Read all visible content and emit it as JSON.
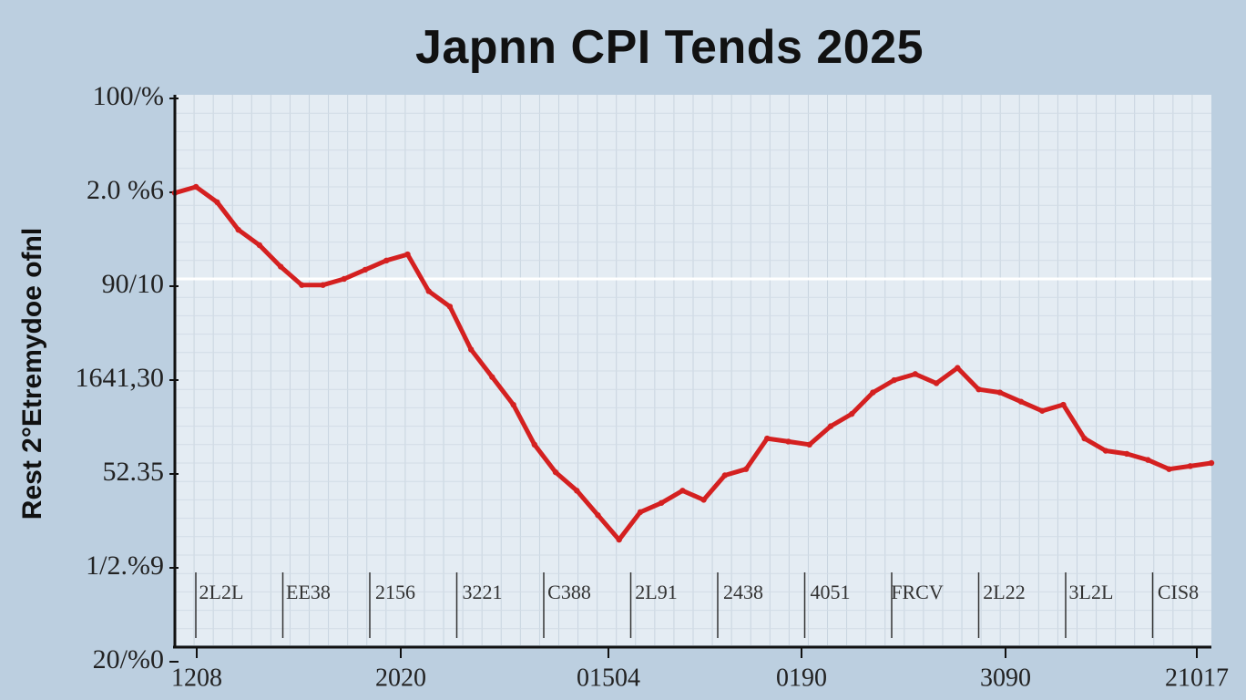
{
  "chart_data": {
    "type": "line",
    "title": "Japnn CPI Tends 2025",
    "ylabel": "Rest 2°Etremydoe ofnl",
    "xlabel": "",
    "grid": true,
    "y_tick_labels": [
      "100/%",
      "2.0 %6",
      "90/10",
      "1641,30",
      "52.35",
      "1/2.%9",
      "20/%0"
    ],
    "x_tick_labels": [
      "1208",
      "2020",
      "01504",
      "0190",
      "3090",
      "21017"
    ],
    "inner_labels": [
      "2L2L",
      "EE38",
      "2156",
      "3221",
      "C388",
      "2L91",
      "2438",
      "4051",
      "FRCV",
      "2L22",
      "3L2L",
      "CIS8"
    ],
    "series": [
      {
        "color": "#d42020",
        "x": [
          0,
          0.5,
          1,
          1.5,
          2,
          2.5,
          3,
          3.5,
          4,
          4.5,
          5,
          5.5,
          6,
          6.5,
          7,
          7.5,
          8,
          8.5,
          9,
          9.5,
          10,
          10.5,
          11,
          11.5,
          12,
          12.5,
          13,
          13.5,
          14,
          14.5,
          15,
          15.5,
          16,
          16.5,
          17,
          17.5,
          18,
          18.5,
          19,
          19.5,
          20,
          20.5,
          21,
          21.5,
          22,
          22.5,
          23,
          23.5,
          24,
          24.5
        ],
        "y": [
          0.9,
          1.0,
          0.75,
          0.3,
          0.05,
          -0.3,
          -0.6,
          -0.6,
          -0.5,
          -0.35,
          -0.2,
          -0.1,
          -0.7,
          -0.95,
          -1.65,
          -2.1,
          -2.55,
          -3.2,
          -3.65,
          -3.95,
          -4.35,
          -4.75,
          -4.3,
          -4.15,
          -3.95,
          -4.1,
          -3.7,
          -3.6,
          -3.1,
          -3.15,
          -3.2,
          -2.9,
          -2.7,
          -2.35,
          -2.15,
          -2.05,
          -2.2,
          -1.95,
          -2.3,
          -2.35,
          -2.5,
          -2.65,
          -2.55,
          -3.1,
          -3.3,
          -3.35,
          -3.45,
          -3.6,
          -3.55,
          -3.5
        ]
      }
    ],
    "xlim": [
      0,
      24.5
    ],
    "ylim": [
      -6.5,
      2.5
    ]
  }
}
